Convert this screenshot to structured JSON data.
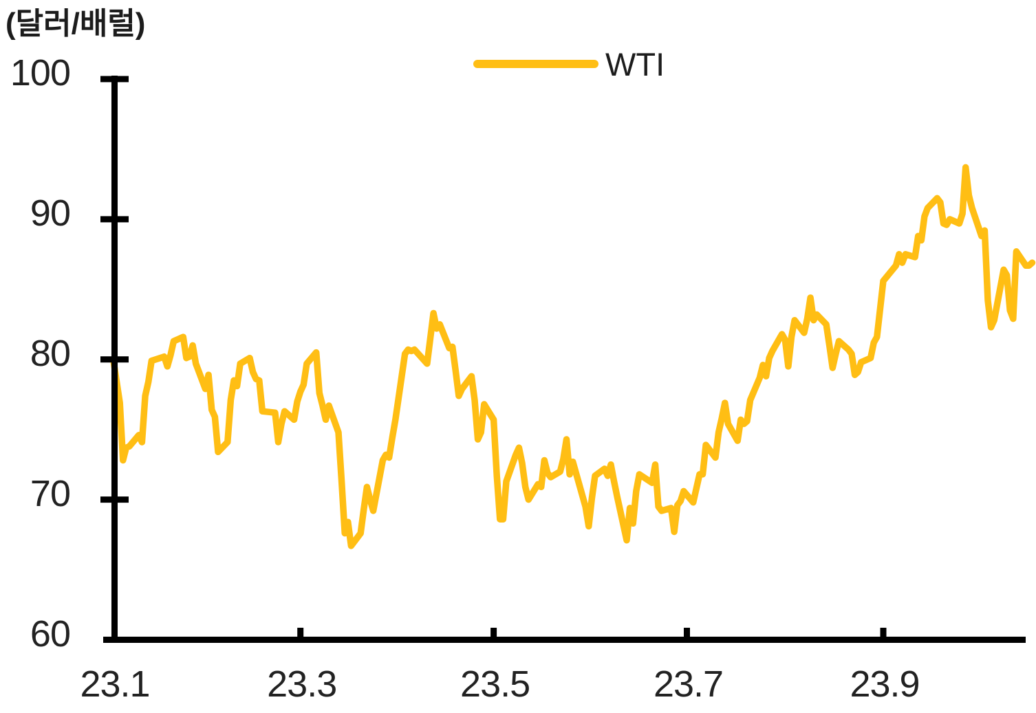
{
  "chart": {
    "unit_label": "(달러/배럴)"
  },
  "colors": {
    "line": "#FFBE14",
    "axis": "#000000",
    "tick_text": "#222222"
  },
  "chart_data": {
    "type": "line",
    "unit_label": "(달러/배럴)",
    "legend_position": "top-center",
    "grid": false,
    "ylim": [
      60,
      100
    ],
    "y_ticks": [
      100,
      90,
      80,
      70,
      60
    ],
    "x_ticks": [
      {
        "label": "23.1",
        "day": 1
      },
      {
        "label": "23.3",
        "day": 60
      },
      {
        "label": "23.5",
        "day": 121
      },
      {
        "label": "23.7",
        "day": 182
      },
      {
        "label": "23.9",
        "day": 244
      }
    ],
    "xlim_days": [
      1,
      292
    ],
    "series": [
      {
        "name": "WTI",
        "color": "#FFBE14",
        "points_day_value": [
          [
            1,
            79.9
          ],
          [
            3,
            76.9
          ],
          [
            4,
            72.8
          ],
          [
            5,
            73.7
          ],
          [
            6,
            73.8
          ],
          [
            9,
            74.6
          ],
          [
            10,
            74.1
          ],
          [
            11,
            77.4
          ],
          [
            12,
            78.4
          ],
          [
            13,
            79.9
          ],
          [
            17,
            80.2
          ],
          [
            18,
            79.5
          ],
          [
            19,
            80.3
          ],
          [
            20,
            81.3
          ],
          [
            23,
            81.6
          ],
          [
            24,
            80.1
          ],
          [
            25,
            80.2
          ],
          [
            26,
            81.0
          ],
          [
            27,
            79.7
          ],
          [
            30,
            77.9
          ],
          [
            31,
            78.9
          ],
          [
            32,
            76.4
          ],
          [
            33,
            75.9
          ],
          [
            34,
            73.4
          ],
          [
            37,
            74.1
          ],
          [
            38,
            77.1
          ],
          [
            39,
            78.5
          ],
          [
            40,
            78.1
          ],
          [
            41,
            79.7
          ],
          [
            44,
            80.1
          ],
          [
            45,
            79.1
          ],
          [
            46,
            78.6
          ],
          [
            47,
            78.5
          ],
          [
            48,
            76.3
          ],
          [
            52,
            76.2
          ],
          [
            53,
            74.1
          ],
          [
            54,
            75.4
          ],
          [
            55,
            76.3
          ],
          [
            58,
            75.7
          ],
          [
            59,
            77.0
          ],
          [
            60,
            77.7
          ],
          [
            61,
            78.2
          ],
          [
            62,
            79.7
          ],
          [
            65,
            80.5
          ],
          [
            66,
            77.6
          ],
          [
            67,
            76.7
          ],
          [
            68,
            75.7
          ],
          [
            69,
            76.7
          ],
          [
            72,
            74.8
          ],
          [
            73,
            71.3
          ],
          [
            74,
            67.6
          ],
          [
            75,
            68.4
          ],
          [
            76,
            66.7
          ],
          [
            79,
            67.6
          ],
          [
            80,
            69.3
          ],
          [
            81,
            70.9
          ],
          [
            82,
            70.0
          ],
          [
            83,
            69.2
          ],
          [
            86,
            72.8
          ],
          [
            87,
            73.2
          ],
          [
            88,
            73.0
          ],
          [
            89,
            74.4
          ],
          [
            90,
            75.7
          ],
          [
            93,
            80.4
          ],
          [
            94,
            80.7
          ],
          [
            95,
            80.6
          ],
          [
            96,
            80.7
          ],
          [
            100,
            79.7
          ],
          [
            101,
            81.5
          ],
          [
            102,
            83.3
          ],
          [
            103,
            82.2
          ],
          [
            104,
            82.5
          ],
          [
            107,
            80.8
          ],
          [
            108,
            80.9
          ],
          [
            109,
            79.2
          ],
          [
            110,
            77.4
          ],
          [
            111,
            77.9
          ],
          [
            114,
            78.8
          ],
          [
            115,
            77.1
          ],
          [
            116,
            74.3
          ],
          [
            117,
            74.8
          ],
          [
            118,
            76.8
          ],
          [
            121,
            75.7
          ],
          [
            122,
            71.7
          ],
          [
            123,
            68.6
          ],
          [
            124,
            68.6
          ],
          [
            125,
            71.3
          ],
          [
            128,
            73.2
          ],
          [
            129,
            73.7
          ],
          [
            130,
            72.6
          ],
          [
            131,
            70.9
          ],
          [
            132,
            70.0
          ],
          [
            135,
            71.1
          ],
          [
            136,
            70.9
          ],
          [
            137,
            72.8
          ],
          [
            138,
            71.9
          ],
          [
            139,
            71.6
          ],
          [
            142,
            72.0
          ],
          [
            143,
            72.9
          ],
          [
            144,
            74.3
          ],
          [
            145,
            71.8
          ],
          [
            146,
            72.7
          ],
          [
            150,
            69.5
          ],
          [
            151,
            68.1
          ],
          [
            152,
            70.1
          ],
          [
            153,
            71.7
          ],
          [
            156,
            72.2
          ],
          [
            157,
            71.7
          ],
          [
            158,
            72.5
          ],
          [
            159,
            71.3
          ],
          [
            160,
            70.2
          ],
          [
            163,
            67.1
          ],
          [
            164,
            69.4
          ],
          [
            165,
            68.3
          ],
          [
            166,
            70.6
          ],
          [
            167,
            71.8
          ],
          [
            171,
            71.2
          ],
          [
            172,
            72.5
          ],
          [
            173,
            69.5
          ],
          [
            174,
            69.2
          ],
          [
            177,
            69.4
          ],
          [
            178,
            67.7
          ],
          [
            179,
            69.6
          ],
          [
            180,
            69.9
          ],
          [
            181,
            70.6
          ],
          [
            184,
            69.8
          ],
          [
            186,
            71.8
          ],
          [
            187,
            71.8
          ],
          [
            188,
            73.9
          ],
          [
            191,
            73.0
          ],
          [
            192,
            74.8
          ],
          [
            193,
            75.8
          ],
          [
            194,
            76.9
          ],
          [
            195,
            75.4
          ],
          [
            198,
            74.2
          ],
          [
            199,
            75.7
          ],
          [
            200,
            75.4
          ],
          [
            201,
            75.6
          ],
          [
            202,
            77.1
          ],
          [
            205,
            78.7
          ],
          [
            206,
            79.6
          ],
          [
            207,
            78.8
          ],
          [
            208,
            80.1
          ],
          [
            209,
            80.6
          ],
          [
            212,
            81.8
          ],
          [
            213,
            81.4
          ],
          [
            214,
            79.5
          ],
          [
            215,
            81.6
          ],
          [
            216,
            82.8
          ],
          [
            219,
            81.9
          ],
          [
            220,
            82.9
          ],
          [
            221,
            84.4
          ],
          [
            222,
            82.8
          ],
          [
            223,
            83.2
          ],
          [
            226,
            82.5
          ],
          [
            227,
            81.0
          ],
          [
            228,
            79.4
          ],
          [
            229,
            80.4
          ],
          [
            230,
            81.3
          ],
          [
            233,
            80.7
          ],
          [
            234,
            80.4
          ],
          [
            235,
            78.9
          ],
          [
            236,
            79.1
          ],
          [
            237,
            79.8
          ],
          [
            240,
            80.1
          ],
          [
            241,
            81.2
          ],
          [
            242,
            81.6
          ],
          [
            243,
            83.6
          ],
          [
            244,
            85.6
          ],
          [
            248,
            86.7
          ],
          [
            249,
            87.5
          ],
          [
            250,
            86.9
          ],
          [
            251,
            87.5
          ],
          [
            254,
            87.3
          ],
          [
            255,
            88.8
          ],
          [
            256,
            88.5
          ],
          [
            257,
            90.2
          ],
          [
            258,
            90.8
          ],
          [
            261,
            91.5
          ],
          [
            262,
            91.2
          ],
          [
            263,
            89.7
          ],
          [
            264,
            89.6
          ],
          [
            265,
            90.0
          ],
          [
            268,
            89.7
          ],
          [
            269,
            90.4
          ],
          [
            270,
            93.7
          ],
          [
            271,
            91.7
          ],
          [
            272,
            90.8
          ],
          [
            275,
            88.8
          ],
          [
            276,
            89.2
          ],
          [
            277,
            84.2
          ],
          [
            278,
            82.3
          ],
          [
            279,
            82.8
          ],
          [
            282,
            86.4
          ],
          [
            283,
            86.0
          ],
          [
            284,
            83.5
          ],
          [
            285,
            82.9
          ],
          [
            286,
            87.7
          ],
          [
            289,
            86.7
          ],
          [
            290,
            86.7
          ],
          [
            291,
            86.9
          ]
        ]
      }
    ]
  }
}
